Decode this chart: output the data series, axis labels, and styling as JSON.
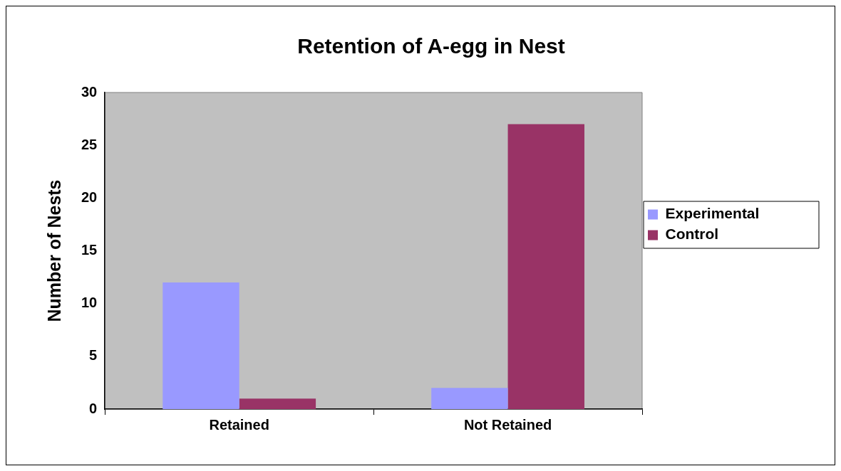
{
  "chart_data": {
    "type": "bar",
    "title": "Retention of A-egg in Nest",
    "ylabel": "Number of Nests",
    "categories": [
      "Retained",
      "Not Retained"
    ],
    "series": [
      {
        "name": "Experimental",
        "color": "#9999ff",
        "values": [
          12,
          2
        ]
      },
      {
        "name": "Control",
        "color": "#993366",
        "values": [
          1,
          27
        ]
      }
    ],
    "ylim": [
      0,
      30
    ],
    "yticks": [
      0,
      5,
      10,
      15,
      20,
      25,
      30
    ],
    "grid": false,
    "legend": "right"
  }
}
